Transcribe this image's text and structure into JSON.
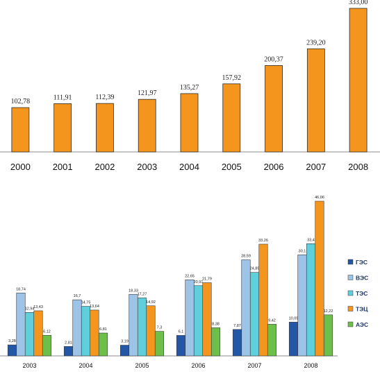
{
  "chart_data": [
    {
      "type": "bar",
      "categories": [
        "2000",
        "2001",
        "2002",
        "2003",
        "2004",
        "2005",
        "2006",
        "2007",
        "2008"
      ],
      "series": [
        {
          "values": [
            102.78,
            111.91,
            112.39,
            121.97,
            135.27,
            157.92,
            200.37,
            239.2,
            333.0
          ],
          "labels": [
            "102,78",
            "111,91",
            "112,39",
            "121,97",
            "135,27",
            "157,92",
            "200,37",
            "239,20",
            "333,00"
          ],
          "color": "#F4961E"
        }
      ],
      "ylim": [
        0,
        333
      ],
      "grid": false,
      "legend": "none"
    },
    {
      "type": "bar",
      "categories": [
        "2003",
        "2004",
        "2005",
        "2006",
        "2007",
        "2008"
      ],
      "series": [
        {
          "name": "ГЭС",
          "color": "#2456A6",
          "values": [
            3.28,
            2.81,
            3.19,
            6.1,
            7.87,
            10.05
          ],
          "labels": [
            "3,28",
            "2,81",
            "3,19",
            "6,1",
            "7,87",
            "10,05"
          ]
        },
        {
          "name": "ВЭС",
          "color": "#9DC3E6",
          "values": [
            18.74,
            16.7,
            18.33,
            22.65,
            28.59,
            30.1
          ],
          "labels": [
            "18,74",
            "16,7",
            "18,33",
            "22,65",
            "28,59",
            "30,1"
          ]
        },
        {
          "name": "ТЭС",
          "color": "#5FCFDB",
          "values": [
            12.94,
            14.75,
            17.27,
            20.91,
            24.85,
            33.4
          ],
          "labels": [
            "12,94",
            "14,75",
            "17,27",
            "20,91",
            "24,85",
            "33,4"
          ]
        },
        {
          "name": "ТЭЦ",
          "color": "#F4961E",
          "values": [
            13.43,
            13.64,
            14.92,
            21.79,
            33.26,
            46.06
          ],
          "labels": [
            "13,43",
            "13,64",
            "14,92",
            "21,79",
            "33,26",
            "46,06"
          ]
        },
        {
          "name": "АЭС",
          "color": "#6CC04A",
          "values": [
            6.12,
            6.81,
            7.3,
            8.38,
            9.42,
            12.22
          ],
          "labels": [
            "6,12",
            "6,81",
            "7,3",
            "8,38",
            "9,42",
            "12,22"
          ]
        }
      ],
      "ylim": [
        0,
        46.06
      ],
      "grid": false,
      "legend": "right"
    }
  ]
}
